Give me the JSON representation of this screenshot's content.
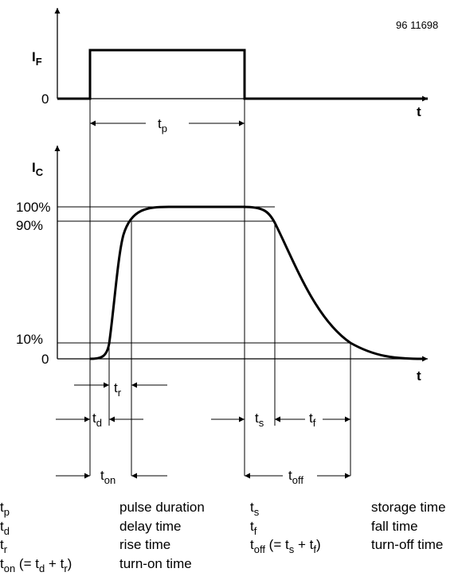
{
  "figure_id": "96 11698",
  "input_axis": {
    "symbol": "I",
    "subscript": "F",
    "zero_label": "0",
    "t_label": "t"
  },
  "output_axis": {
    "symbol": "I",
    "subscript": "C",
    "t_label": "t",
    "levels": {
      "l100": "100%",
      "l90": "90%",
      "l10": "10%",
      "l0": "0"
    }
  },
  "intervals": {
    "tp": {
      "main": "t",
      "sub": "p"
    },
    "tr": {
      "main": "t",
      "sub": "r"
    },
    "td": {
      "main": "t",
      "sub": "d"
    },
    "ts": {
      "main": "t",
      "sub": "s"
    },
    "tf": {
      "main": "t",
      "sub": "f"
    },
    "ton": {
      "main": "t",
      "sub": "on"
    },
    "toff": {
      "main": "t",
      "sub": "off"
    }
  },
  "legend": [
    {
      "main": "t",
      "sub": "p",
      "extra": [],
      "desc": "pulse duration"
    },
    {
      "main": "t",
      "sub": "d",
      "extra": [],
      "desc": "delay time"
    },
    {
      "main": "t",
      "sub": "r",
      "extra": [],
      "desc": "rise time"
    },
    {
      "main": "t",
      "sub": "on",
      "extra": [
        {
          "t": " (= t",
          "sub": false
        },
        {
          "t": "d",
          "sub": true
        },
        {
          "t": " + t",
          "sub": false
        },
        {
          "t": "r",
          "sub": true
        },
        {
          "t": ")",
          "sub": false
        }
      ],
      "desc": "turn-on time"
    },
    {
      "main": "t",
      "sub": "s",
      "extra": [],
      "desc": "storage time"
    },
    {
      "main": "t",
      "sub": "f",
      "extra": [],
      "desc": "fall time"
    },
    {
      "main": "t",
      "sub": "off",
      "extra": [
        {
          "t": " (= t",
          "sub": false
        },
        {
          "t": "s",
          "sub": true
        },
        {
          "t": " + t",
          "sub": false
        },
        {
          "t": "f",
          "sub": true
        },
        {
          "t": ")",
          "sub": false
        }
      ],
      "desc": "turn-off time"
    }
  ]
}
